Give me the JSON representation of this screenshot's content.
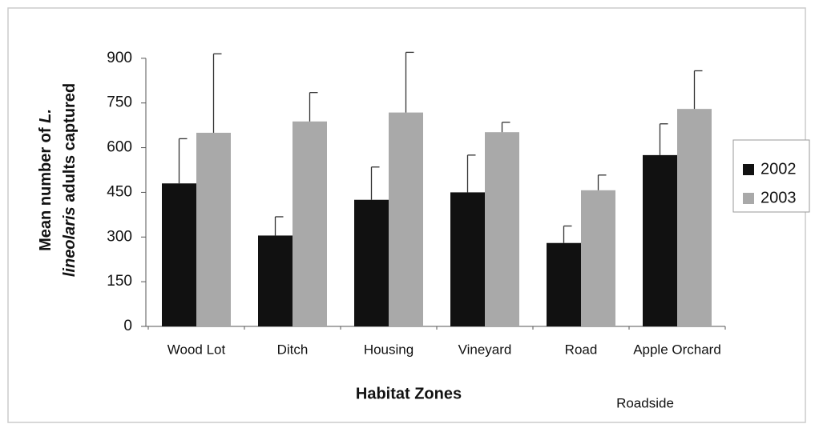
{
  "chart_data": {
    "type": "bar",
    "y_label_lines": [
      [
        {
          "text": "Mean number of ",
          "italic": false
        },
        {
          "text": "L.",
          "italic": true
        }
      ],
      [
        {
          "text": "lineolaris",
          "italic": true
        },
        {
          "text": " adults captured",
          "italic": false
        }
      ]
    ],
    "x_label": "Habitat  Zones",
    "annotation": "Roadside",
    "categories": [
      "Wood Lot",
      "Ditch",
      "Housing",
      "Vineyard",
      "Road",
      "Apple Orchard"
    ],
    "series": [
      {
        "name": "2002",
        "color": "#111111",
        "values": [
          480,
          305,
          425,
          450,
          280,
          575
        ],
        "errors": [
          150,
          63,
          110,
          125,
          57,
          105
        ]
      },
      {
        "name": "2003",
        "color": "#a9a9a9",
        "values": [
          650,
          688,
          718,
          652,
          457,
          730
        ],
        "errors": [
          265,
          97,
          202,
          33,
          51,
          128
        ]
      }
    ],
    "ylim": [
      0,
      1050
    ],
    "yticks": [
      0,
      150,
      300,
      450,
      600,
      750,
      900
    ],
    "grid": false,
    "legend": "right"
  }
}
